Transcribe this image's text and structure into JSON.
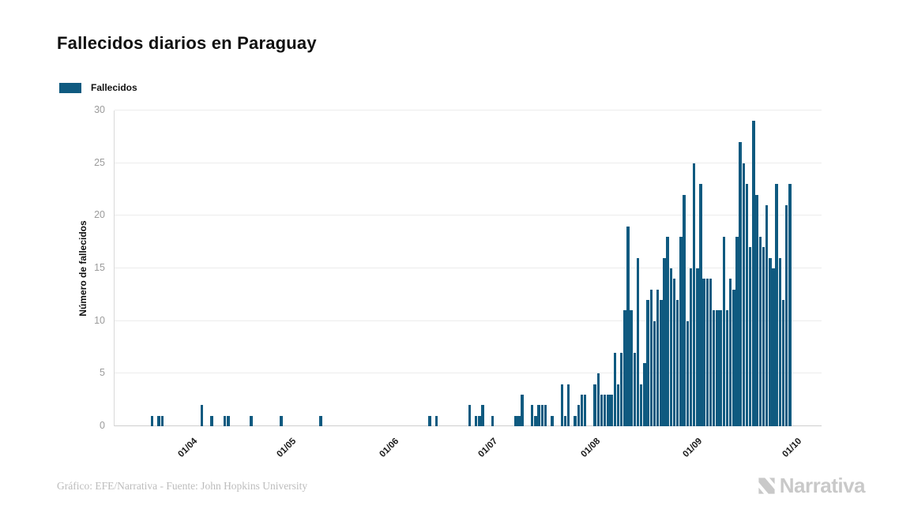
{
  "title": "Fallecidos diarios en Paraguay",
  "legend": {
    "label": "Fallecidos",
    "color": "#0f5a80"
  },
  "footer": {
    "credit": "Gráfico: EFE/Narrativa - Fuente: John Hopkins University"
  },
  "logo": {
    "text": "Narrativa",
    "color": "#c9c9c9"
  },
  "colors": {
    "bar": "#0f5a80",
    "grid": "#ececec",
    "axis": "#d9d9d9",
    "tick_text": "#9b9b9b"
  },
  "chart_data": {
    "type": "bar",
    "title": "Fallecidos diarios en Paraguay",
    "series_name": "Fallecidos",
    "xlabel": "",
    "ylabel": "Número de fallecidos",
    "ylim": [
      0,
      30
    ],
    "yticks": [
      0,
      5,
      10,
      15,
      20,
      25,
      30
    ],
    "grid": "horizontal",
    "legend_position": "top-left",
    "bar_color": "#0f5a80",
    "x_tick_labels": [
      "01/04",
      "01/05",
      "01/06",
      "01/07",
      "01/08",
      "01/09",
      "01/10"
    ],
    "x_tick_indices": [
      23,
      53,
      84,
      114,
      145,
      176,
      206
    ],
    "x_note": "daily bars from mid-March to early October; values estimated from pixels",
    "values": [
      0,
      0,
      0,
      0,
      0,
      0,
      0,
      0,
      0,
      0,
      0,
      1,
      0,
      1,
      1,
      0,
      0,
      0,
      0,
      0,
      0,
      0,
      0,
      0,
      0,
      0,
      2,
      0,
      0,
      1,
      0,
      0,
      0,
      1,
      1,
      0,
      0,
      0,
      0,
      0,
      0,
      1,
      0,
      0,
      0,
      0,
      0,
      0,
      0,
      0,
      1,
      0,
      0,
      0,
      0,
      0,
      0,
      0,
      0,
      0,
      0,
      0,
      1,
      0,
      0,
      0,
      0,
      0,
      0,
      0,
      0,
      0,
      0,
      0,
      0,
      0,
      0,
      0,
      0,
      0,
      0,
      0,
      0,
      0,
      0,
      0,
      0,
      0,
      0,
      0,
      0,
      0,
      0,
      0,
      0,
      1,
      0,
      1,
      0,
      0,
      0,
      0,
      0,
      0,
      0,
      0,
      0,
      2,
      0,
      1,
      1,
      2,
      0,
      0,
      1,
      0,
      0,
      0,
      0,
      0,
      0,
      1,
      1,
      3,
      0,
      0,
      2,
      1,
      2,
      2,
      2,
      0,
      1,
      0,
      0,
      4,
      1,
      4,
      0,
      1,
      2,
      3,
      3,
      0,
      0,
      4,
      5,
      3,
      3,
      3,
      3,
      7,
      4,
      7,
      11,
      19,
      11,
      7,
      16,
      4,
      6,
      12,
      13,
      10,
      13,
      12,
      16,
      18,
      15,
      14,
      12,
      18,
      22,
      10,
      15,
      25,
      15,
      23,
      14,
      14,
      14,
      11,
      11,
      11,
      18,
      11,
      14,
      13,
      18,
      27,
      25,
      23,
      17,
      29,
      22,
      18,
      17,
      21,
      16,
      15,
      23,
      16,
      12,
      21,
      23,
      0,
      0,
      0,
      0,
      0,
      0,
      0,
      0,
      0
    ]
  }
}
